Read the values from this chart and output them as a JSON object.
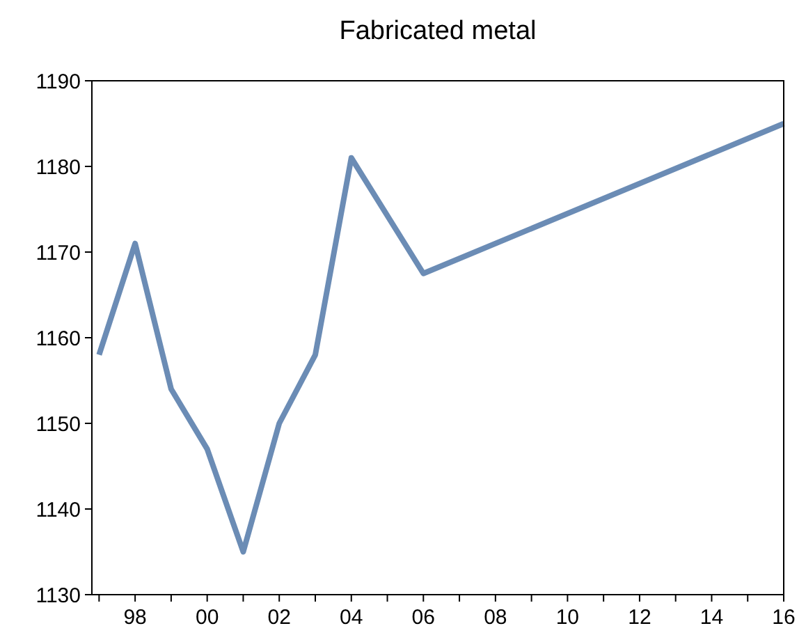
{
  "chart_data": {
    "type": "line",
    "title": "Fabricated metal",
    "x": [
      1997,
      1998,
      1999,
      2000,
      2001,
      2002,
      2003,
      2004,
      2006,
      2016
    ],
    "series": [
      {
        "color": "#6b8cb5",
        "values": [
          1158,
          1171,
          1154,
          1147,
          1135,
          1150,
          1158,
          1181,
          1167.5,
          1185
        ]
      }
    ],
    "xlim": [
      1996.8,
      2016
    ],
    "xticks": [
      {
        "value": 1997,
        "label": null
      },
      {
        "value": 1998,
        "label": "98"
      },
      {
        "value": 1999,
        "label": null
      },
      {
        "value": 2000,
        "label": "00"
      },
      {
        "value": 2001,
        "label": null
      },
      {
        "value": 2002,
        "label": "02"
      },
      {
        "value": 2003,
        "label": null
      },
      {
        "value": 2004,
        "label": "04"
      },
      {
        "value": 2005,
        "label": null
      },
      {
        "value": 2006,
        "label": "06"
      },
      {
        "value": 2007,
        "label": null
      },
      {
        "value": 2008,
        "label": "08"
      },
      {
        "value": 2009,
        "label": null
      },
      {
        "value": 2010,
        "label": "10"
      },
      {
        "value": 2011,
        "label": null
      },
      {
        "value": 2012,
        "label": "12"
      },
      {
        "value": 2013,
        "label": null
      },
      {
        "value": 2014,
        "label": "14"
      },
      {
        "value": 2015,
        "label": null
      },
      {
        "value": 2016,
        "label": "16"
      }
    ],
    "ylim": [
      1130,
      1190
    ],
    "yticks": [
      1130,
      1140,
      1150,
      1160,
      1170,
      1180,
      1190
    ],
    "line_style": "solid"
  }
}
